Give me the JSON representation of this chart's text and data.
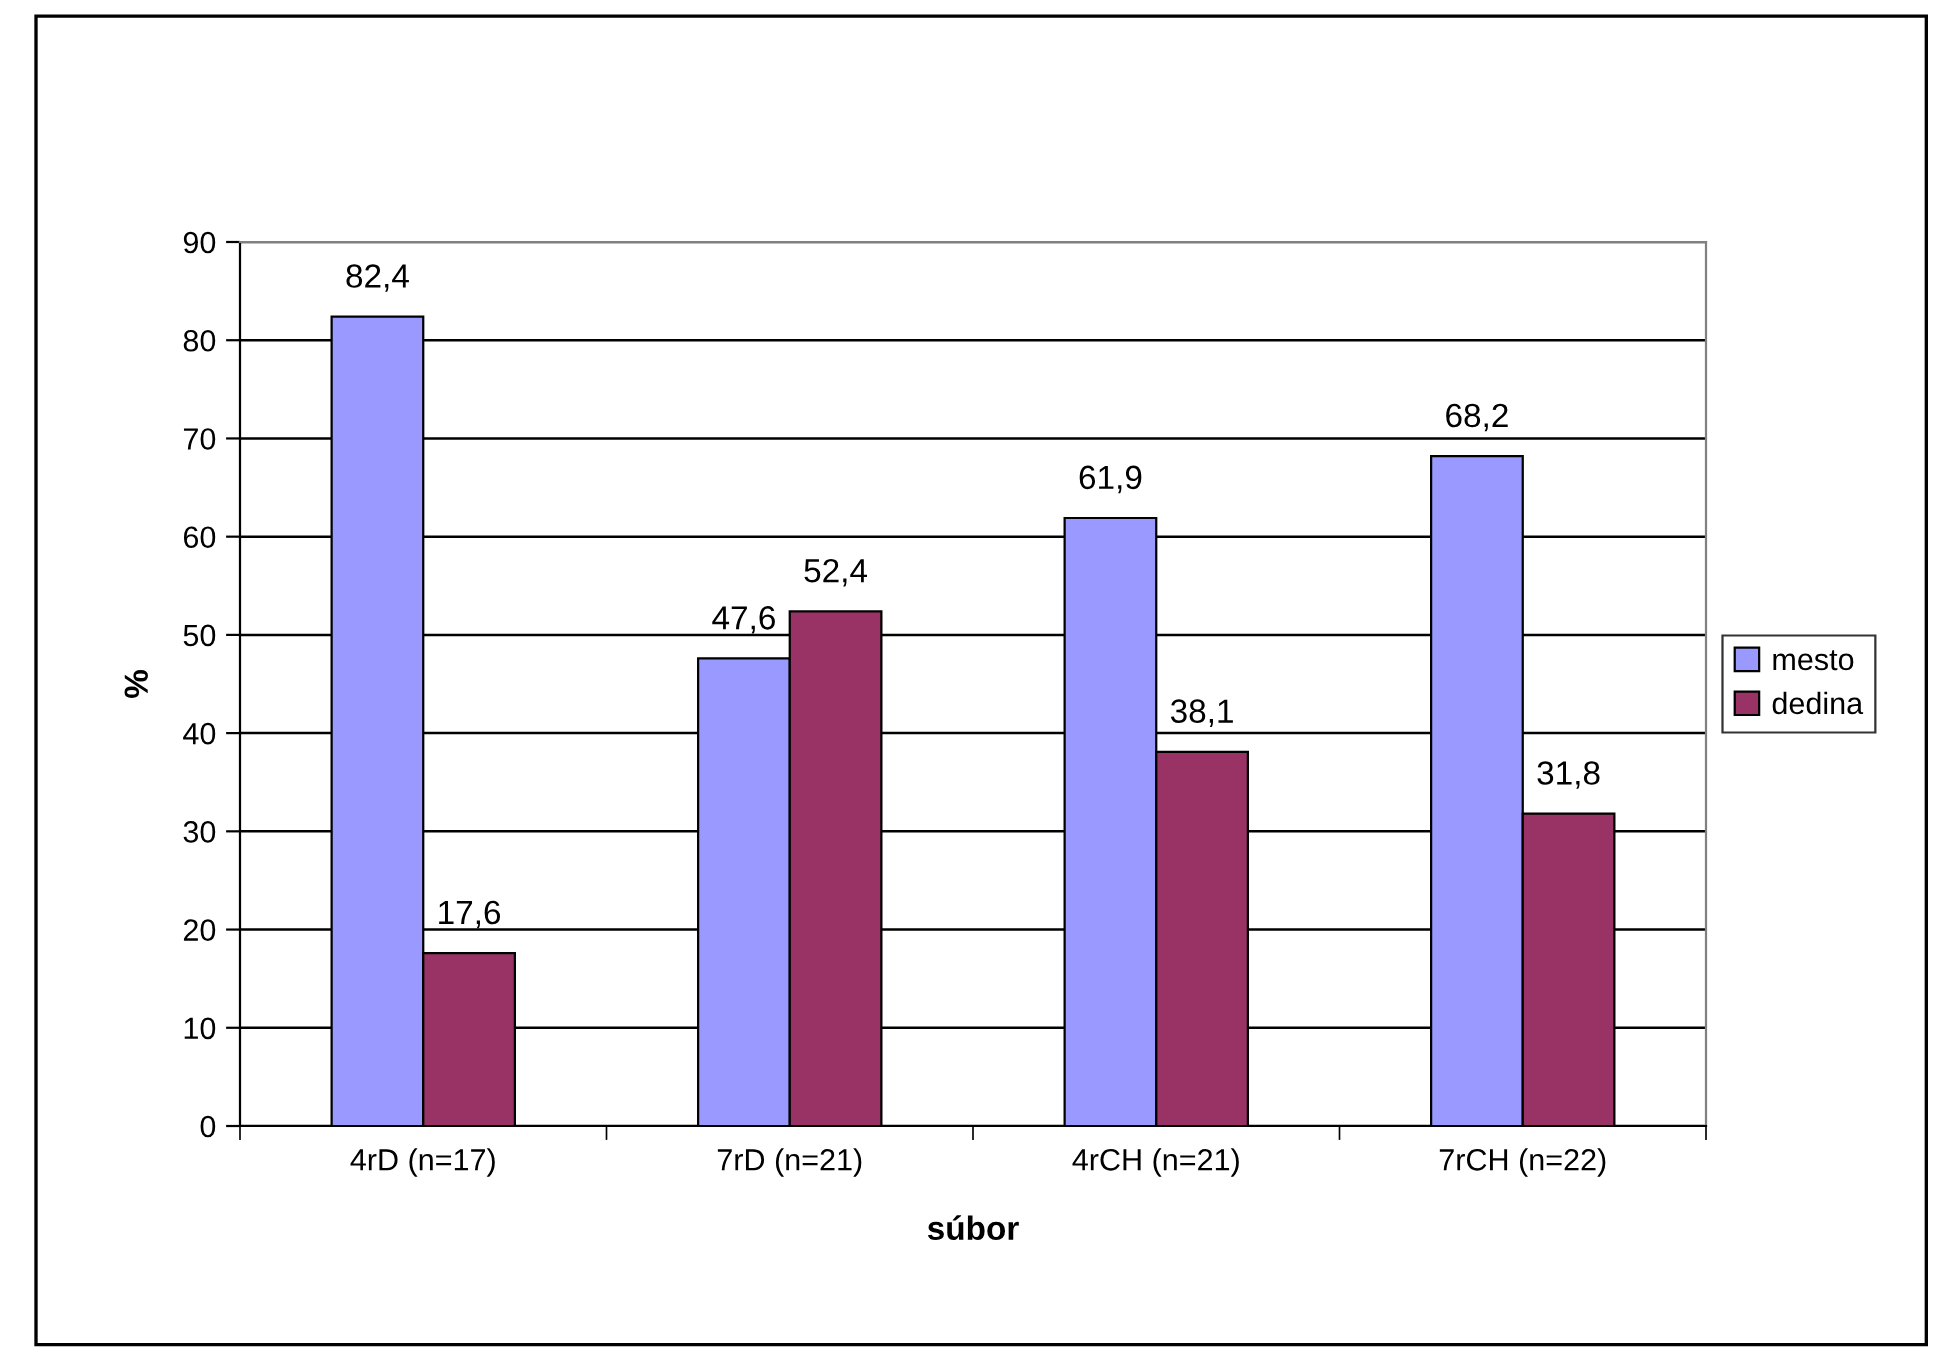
{
  "chart_data": {
    "type": "bar",
    "xlabel": "súbor",
    "ylabel": "%",
    "categories": [
      "4rD (n=17)",
      "7rD (n=21)",
      "4rCH (n=21)",
      "7rCH (n=22)"
    ],
    "series": [
      {
        "name": "mesto",
        "color": "#9999ff",
        "values": [
          82.4,
          47.6,
          61.9,
          68.2
        ],
        "value_labels": [
          "82,4",
          "47,6",
          "61,9",
          "68,2"
        ]
      },
      {
        "name": "dedina",
        "color": "#993366",
        "values": [
          17.6,
          52.4,
          38.1,
          31.8
        ],
        "value_labels": [
          "17,6",
          "52,4",
          "38,1",
          "31,8"
        ]
      }
    ],
    "ylim": [
      0,
      90
    ],
    "yticks": [
      0,
      10,
      20,
      30,
      40,
      50,
      60,
      70,
      80,
      90
    ],
    "grid": "y",
    "legend": "right"
  }
}
